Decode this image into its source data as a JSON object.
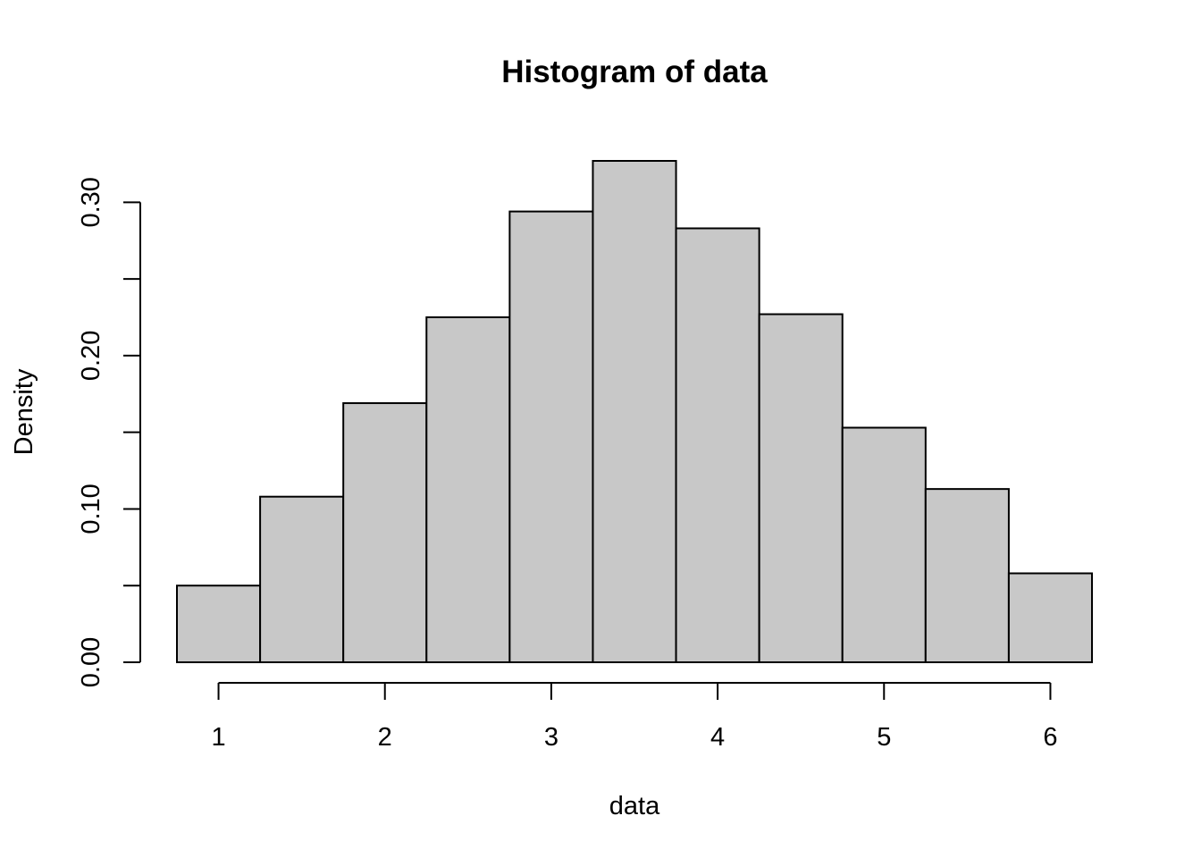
{
  "chart_data": {
    "type": "bar",
    "title": "Histogram of data",
    "xlabel": "data",
    "ylabel": "Density",
    "bins": [
      {
        "x0": 0.75,
        "x1": 1.25,
        "density": 0.05
      },
      {
        "x0": 1.25,
        "x1": 1.75,
        "density": 0.108
      },
      {
        "x0": 1.75,
        "x1": 2.25,
        "density": 0.169
      },
      {
        "x0": 2.25,
        "x1": 2.75,
        "density": 0.225
      },
      {
        "x0": 2.75,
        "x1": 3.25,
        "density": 0.294
      },
      {
        "x0": 3.25,
        "x1": 3.75,
        "density": 0.327
      },
      {
        "x0": 3.75,
        "x1": 4.25,
        "density": 0.283
      },
      {
        "x0": 4.25,
        "x1": 4.75,
        "density": 0.227
      },
      {
        "x0": 4.75,
        "x1": 5.25,
        "density": 0.153
      },
      {
        "x0": 5.25,
        "x1": 5.75,
        "density": 0.113
      },
      {
        "x0": 5.75,
        "x1": 6.25,
        "density": 0.058
      }
    ],
    "x_ticks": [
      1,
      2,
      3,
      4,
      5,
      6
    ],
    "x_tick_labels": [
      "1",
      "2",
      "3",
      "4",
      "5",
      "6"
    ],
    "y_ticks": [
      0.0,
      0.05,
      0.1,
      0.15,
      0.2,
      0.25,
      0.3
    ],
    "y_tick_labels": [
      "0.00",
      "0.10",
      "0.20",
      "0.30"
    ],
    "y_labeled_ticks": [
      0.0,
      0.1,
      0.2,
      0.3
    ],
    "xlim": [
      0.75,
      6.25
    ],
    "ylim": [
      0,
      0.327
    ],
    "grid": false,
    "bar_color": "#c8c8c8",
    "stroke_color": "#000000"
  }
}
